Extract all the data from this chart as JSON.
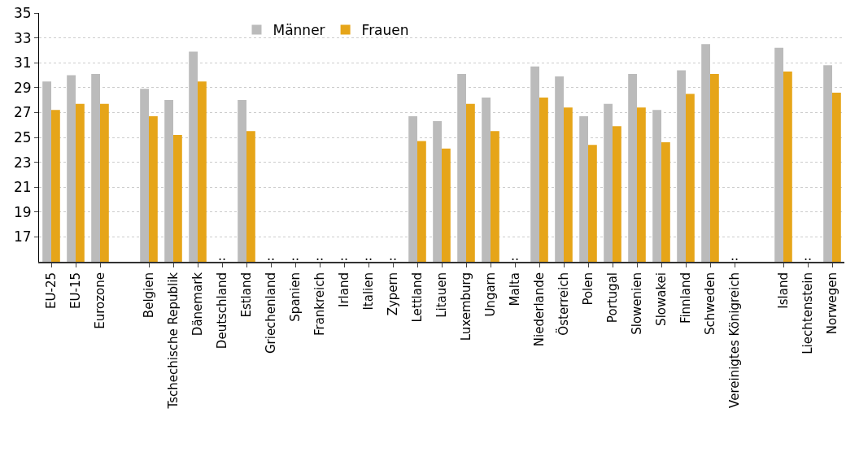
{
  "chart_data": {
    "type": "bar",
    "categories": [
      "EU-25",
      "EU-15",
      "Eurozone",
      null,
      "Belgien",
      "Tschechische Republik",
      "Dänemark",
      "Deutschland",
      "Estland",
      "Griechenland",
      "Spanien",
      "Frankreich",
      "Irland",
      "Italien",
      "Zypern",
      "Lettland",
      "Litauen",
      "Luxemburg",
      "Ungarn",
      "Malta",
      "Niederlande",
      "Österreich",
      "Polen",
      "Portugal",
      "Slowenien",
      "Slowakei",
      "Finnland",
      "Schweden",
      "Vereinigtes Königreich",
      null,
      "Island",
      "Liechtenstein",
      "Norwegen"
    ],
    "series": [
      {
        "name": "Männer",
        "color": "#bbbbbb",
        "values": [
          29.5,
          30.0,
          30.1,
          null,
          28.9,
          28.0,
          31.9,
          null,
          28.0,
          null,
          null,
          null,
          null,
          null,
          null,
          26.7,
          26.3,
          30.1,
          28.2,
          null,
          30.7,
          29.9,
          26.7,
          27.7,
          30.1,
          27.2,
          30.4,
          32.5,
          null,
          null,
          32.2,
          null,
          30.8
        ],
        "value_labels": [
          null,
          null,
          null,
          null,
          null,
          null,
          null,
          "..",
          null,
          "..",
          "..",
          "..",
          "..",
          "..",
          "..",
          null,
          null,
          null,
          null,
          "..",
          null,
          null,
          null,
          null,
          null,
          null,
          null,
          null,
          "..",
          null,
          null,
          "..",
          null
        ]
      },
      {
        "name": "Frauen",
        "color": "#e6a519",
        "values": [
          27.2,
          27.7,
          27.7,
          null,
          26.7,
          25.2,
          29.5,
          null,
          25.5,
          null,
          null,
          null,
          null,
          null,
          null,
          24.7,
          24.1,
          27.7,
          25.5,
          null,
          28.2,
          27.4,
          24.4,
          25.9,
          27.4,
          24.6,
          28.5,
          30.1,
          null,
          null,
          30.3,
          null,
          28.6
        ]
      }
    ],
    "ylim": [
      15,
      35
    ],
    "yticks": [
      17,
      19,
      21,
      23,
      25,
      27,
      29,
      31,
      33,
      35
    ],
    "grid": "y",
    "legend": "top"
  }
}
